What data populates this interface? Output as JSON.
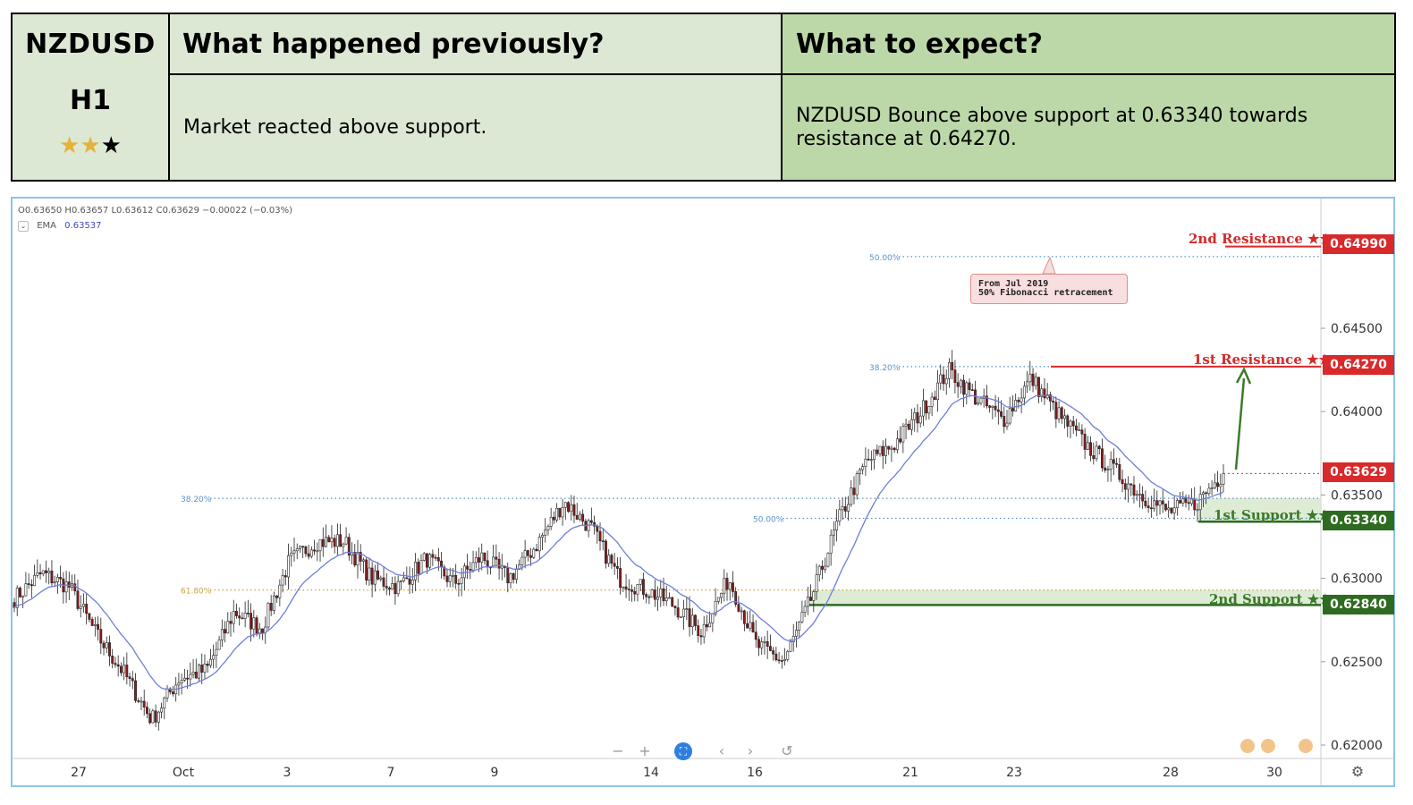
{
  "header": {
    "symbol": "NZDUSD",
    "timeframe": "H1",
    "stars_gold": "★★",
    "stars_black": "★",
    "rating_text": "★★★",
    "prev_title": "What happened previously?",
    "expect_title": "What to expect?",
    "prev_text": "Market reacted above support.",
    "expect_text": "NZDUSD Bounce above support at 0.63340 towards resistance at 0.64270."
  },
  "chart_toolbar": {
    "ohlc_open": "O0.63650",
    "ohlc_high": "H0.63657",
    "ohlc_low": "L0.63612",
    "ohlc_close": "C0.63629",
    "ohlc_change": "−0.00022 (−0.03%)",
    "ema_label": "EMA",
    "ema_value": "0.63537",
    "collapse_icon": "chevron-down-icon"
  },
  "callout": {
    "line1": "From Jul 2019",
    "line2": "50% Fibonacci retracement"
  },
  "levels": {
    "resistance2": {
      "label": "2nd Resistance ★★",
      "value": "0.64990"
    },
    "resistance1": {
      "label": "1st Resistance ★★",
      "value": "0.64270"
    },
    "current": {
      "value": "0.63629"
    },
    "support1": {
      "label": "1st Support ★★",
      "value": "0.63340"
    },
    "support2": {
      "label": "2nd Support ★★",
      "value": "0.62840"
    }
  },
  "colors": {
    "up_candle": "#ffffff",
    "down_candle": "#8b1a1a",
    "ema_line": "#6e7fd8",
    "resistance": "#d8292b",
    "support": "#2e6b20",
    "fib_blue": "#5a92c8",
    "fib_gold": "#c9a440",
    "arrow": "#3d7a2c",
    "frame": "#8ec3ea"
  },
  "nav_controls": {
    "zoom_out_icon": "minus-icon",
    "zoom_in_icon": "plus-icon",
    "fullscreen_icon": "fullscreen-icon",
    "left_icon": "chevron-left-icon",
    "right_icon": "chevron-right-icon",
    "reset_icon": "reset-icon",
    "settings_icon": "gear-icon"
  },
  "chart_data": {
    "type": "candlestick",
    "title": "",
    "symbol": "NZDUSD",
    "timeframe": "H1",
    "y_ticks": [
      0.645,
      0.64,
      0.635,
      0.63,
      0.625,
      0.62
    ],
    "y_tick_labels": [
      "0.64500",
      "0.64000",
      "0.63500",
      "0.63000",
      "0.62500",
      "0.62000"
    ],
    "ylim": [
      0.62,
      0.6515
    ],
    "x_tick_labels": [
      "27",
      "Oct",
      "3",
      "7",
      "9",
      "14",
      "16",
      "21",
      "23",
      "28",
      "30"
    ],
    "fibonacci": [
      {
        "label": "50.00%",
        "price": 0.6493
      },
      {
        "label": "38.20%",
        "price": 0.6427
      },
      {
        "label": "38.20%",
        "price": 0.6348
      },
      {
        "label": "50.00%",
        "price": 0.6336
      },
      {
        "label": "61.80%",
        "price": 0.6293
      }
    ],
    "key_levels": [
      {
        "name": "2nd Resistance",
        "price": 0.6499
      },
      {
        "name": "1st Resistance",
        "price": 0.6427
      },
      {
        "name": "1st Support",
        "price": 0.6334
      },
      {
        "name": "2nd Support",
        "price": 0.6284
      }
    ],
    "last_price": 0.63629,
    "ema_last": 0.63537,
    "close_path": [
      {
        "x": "27",
        "y": 0.6288
      },
      {
        "x": "27",
        "y": 0.6303
      },
      {
        "x": "27",
        "y": 0.6295
      },
      {
        "x": "Oct",
        "y": 0.6266
      },
      {
        "x": "Oct",
        "y": 0.6243
      },
      {
        "x": "Oct",
        "y": 0.6215
      },
      {
        "x": "Oct",
        "y": 0.624
      },
      {
        "x": "3",
        "y": 0.6245
      },
      {
        "x": "3",
        "y": 0.628
      },
      {
        "x": "3",
        "y": 0.627
      },
      {
        "x": "3",
        "y": 0.631
      },
      {
        "x": "3",
        "y": 0.6322
      },
      {
        "x": "7",
        "y": 0.6322
      },
      {
        "x": "7",
        "y": 0.63
      },
      {
        "x": "7",
        "y": 0.6295
      },
      {
        "x": "9",
        "y": 0.6312
      },
      {
        "x": "9",
        "y": 0.6297
      },
      {
        "x": "9",
        "y": 0.6313
      },
      {
        "x": "9",
        "y": 0.63
      },
      {
        "x": "9",
        "y": 0.632
      },
      {
        "x": "14",
        "y": 0.6346
      },
      {
        "x": "14",
        "y": 0.633
      },
      {
        "x": "14",
        "y": 0.63
      },
      {
        "x": "14",
        "y": 0.6293
      },
      {
        "x": "16",
        "y": 0.6284
      },
      {
        "x": "16",
        "y": 0.6268
      },
      {
        "x": "16",
        "y": 0.63
      },
      {
        "x": "16",
        "y": 0.626
      },
      {
        "x": "16",
        "y": 0.625
      },
      {
        "x": "16",
        "y": 0.6288
      },
      {
        "x": "21",
        "y": 0.6335
      },
      {
        "x": "21",
        "y": 0.637
      },
      {
        "x": "21",
        "y": 0.638
      },
      {
        "x": "21",
        "y": 0.64
      },
      {
        "x": "21",
        "y": 0.6425
      },
      {
        "x": "23",
        "y": 0.6408
      },
      {
        "x": "23",
        "y": 0.6395
      },
      {
        "x": "23",
        "y": 0.642
      },
      {
        "x": "23",
        "y": 0.6398
      },
      {
        "x": "28",
        "y": 0.638
      },
      {
        "x": "28",
        "y": 0.6365
      },
      {
        "x": "28",
        "y": 0.635
      },
      {
        "x": "28",
        "y": 0.634
      },
      {
        "x": "28",
        "y": 0.6345
      },
      {
        "x": "28",
        "y": 0.6363
      }
    ]
  }
}
